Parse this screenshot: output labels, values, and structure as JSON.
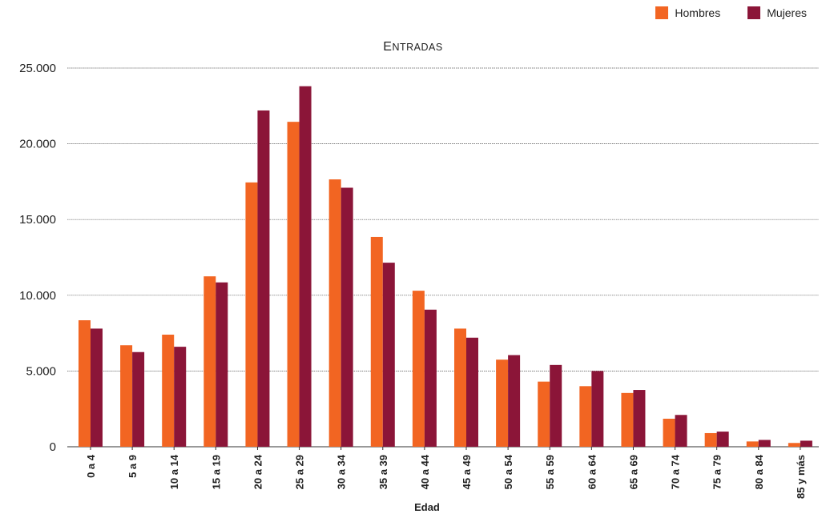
{
  "chart_data": {
    "type": "bar",
    "title_first": "E",
    "title_rest": "NTRADAS",
    "xlabel": "Edad",
    "ylabel": "",
    "ylim": [
      0,
      25000
    ],
    "yticks": [
      0,
      5000,
      10000,
      15000,
      20000,
      25000
    ],
    "ytick_labels": [
      "0",
      "5.000",
      "10.000",
      "15.000",
      "20.000",
      "25.000"
    ],
    "grid": true,
    "legend_position": "top-right",
    "categories": [
      "0 a 4",
      "5 a 9",
      "10 a 14",
      "15 a 19",
      "20 a 24",
      "25 a 29",
      "30 a 34",
      "35 a 39",
      "40 a 44",
      "45 a 49",
      "50 a 54",
      "55 a 59",
      "60 a 64",
      "65 a 69",
      "70 a 74",
      "75 a 79",
      "80 a 84",
      "85 y más"
    ],
    "series": [
      {
        "name": "Hombres",
        "color": "#f26522",
        "values": [
          8350,
          6700,
          7400,
          11250,
          17450,
          21450,
          17650,
          13850,
          10300,
          7800,
          5750,
          4300,
          4000,
          3550,
          1850,
          900,
          350,
          250
        ]
      },
      {
        "name": "Mujeres",
        "color": "#8b1538",
        "values": [
          7800,
          6250,
          6600,
          10850,
          22200,
          23800,
          17100,
          12150,
          9050,
          7200,
          6050,
          5400,
          5000,
          3750,
          2100,
          1000,
          450,
          400
        ]
      }
    ]
  }
}
